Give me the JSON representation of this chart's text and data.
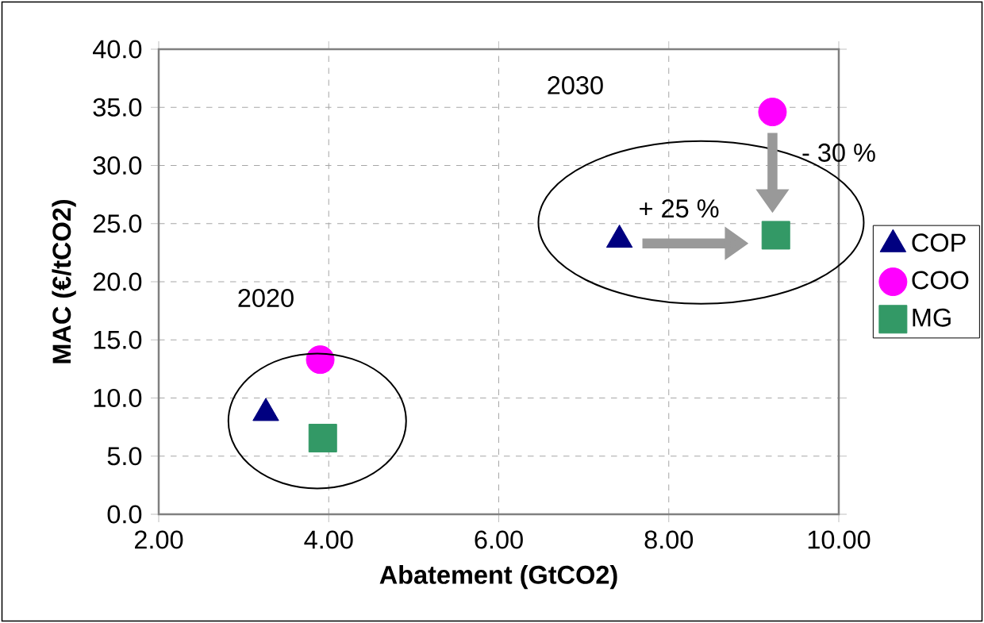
{
  "chart_data": {
    "type": "scatter",
    "xlabel": "Abatement (GtCO2)",
    "ylabel": "MAC (€/tCO2)",
    "xlim": [
      2,
      10
    ],
    "ylim": [
      0,
      40
    ],
    "xticks": [
      {
        "value": 2,
        "label": "2.00"
      },
      {
        "value": 4,
        "label": "4.00"
      },
      {
        "value": 6,
        "label": "6.00"
      },
      {
        "value": 8,
        "label": "8.00"
      },
      {
        "value": 10,
        "label": "10.00"
      }
    ],
    "yticks": [
      {
        "value": 0,
        "label": "0.0"
      },
      {
        "value": 5,
        "label": "5.0"
      },
      {
        "value": 10,
        "label": "10.0"
      },
      {
        "value": 15,
        "label": "15.0"
      },
      {
        "value": 20,
        "label": "20.0"
      },
      {
        "value": 25,
        "label": "25.0"
      },
      {
        "value": 30,
        "label": "30.0"
      },
      {
        "value": 35,
        "label": "35.0"
      },
      {
        "value": 40,
        "label": "40.0"
      }
    ],
    "grid": true,
    "legend": "right",
    "series": [
      {
        "name": "COP",
        "color": "#000080",
        "marker": "triangle",
        "x": [
          3.26,
          7.42
        ],
        "values": [
          8.7,
          23.6
        ]
      },
      {
        "name": "COO",
        "color": "#ff00ff",
        "marker": "circle",
        "x": [
          3.9,
          9.22
        ],
        "values": [
          13.3,
          34.6
        ]
      },
      {
        "name": "MG",
        "color": "#339966",
        "marker": "square",
        "x": [
          3.93,
          9.26
        ],
        "values": [
          6.55,
          24.0
        ]
      }
    ],
    "annotations": [
      "2020",
      "2030",
      "+ 25 %",
      "- 30 %"
    ]
  }
}
